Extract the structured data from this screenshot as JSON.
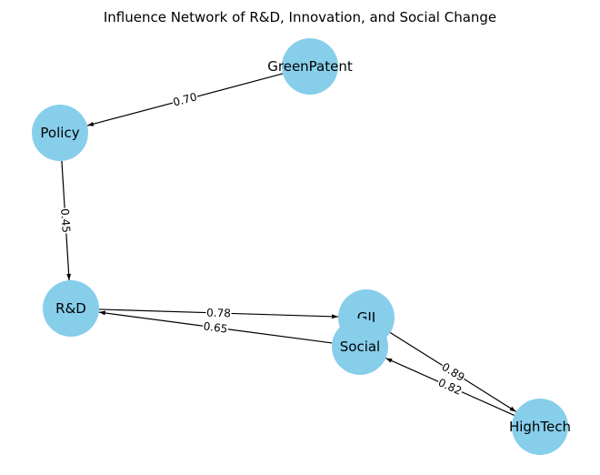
{
  "title": "Influence Network of R&D, Innovation, and Social Change",
  "colors": {
    "node_fill": "#87ceeb",
    "edge": "#000000",
    "label_bg": "#ffffff",
    "background": "#ffffff"
  },
  "nodes": [
    {
      "id": "GreenPatent",
      "label": "GreenPatent"
    },
    {
      "id": "Policy",
      "label": "Policy"
    },
    {
      "id": "R&D",
      "label": "R&D"
    },
    {
      "id": "GII",
      "label": "GII"
    },
    {
      "id": "Social",
      "label": "Social"
    },
    {
      "id": "HighTech",
      "label": "HighTech"
    }
  ],
  "edges": [
    {
      "from": "GreenPatent",
      "to": "Policy",
      "weight": "0.70"
    },
    {
      "from": "Policy",
      "to": "R&D",
      "weight": "0.45"
    },
    {
      "from": "R&D",
      "to": "GII",
      "weight": "0.78"
    },
    {
      "from": "Social",
      "to": "R&D",
      "weight": "0.65"
    },
    {
      "from": "GII",
      "to": "HighTech",
      "weight": "0.89"
    },
    {
      "from": "HighTech",
      "to": "Social",
      "weight": "0.82"
    }
  ]
}
